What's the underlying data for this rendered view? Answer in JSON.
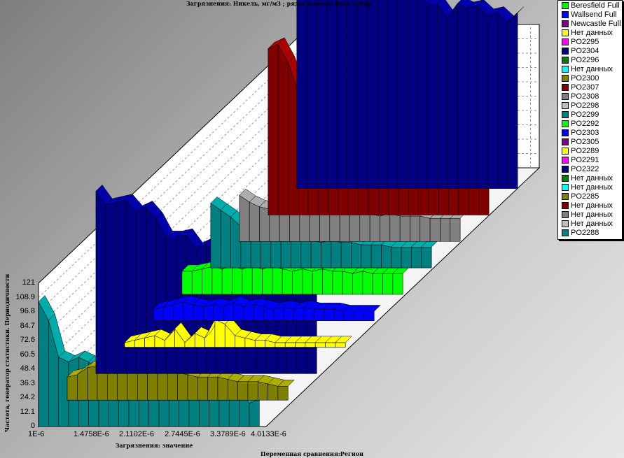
{
  "chart_data": {
    "type": "area",
    "title": "Загрязнения: Никель,  мг/м3 ; ряды данных: Весь набор",
    "xlabel": "Загрязнения:  значение",
    "ylabel": "Частота, генератор статистики.  Периодичности",
    "zlabel": "Переменная сравнения:Регион",
    "y_ticks": [
      "0",
      "12.1",
      "24.2",
      "36.3",
      "48.4",
      "60.5",
      "72.6",
      "84.7",
      "96.8",
      "108.9",
      "121"
    ],
    "ylim": [
      0,
      121
    ],
    "x_ticks": [
      "1E-6",
      "1.4758E-6",
      "2.1102E-6",
      "2.7445E-6",
      "3.3789E-6",
      "4.0133E-6"
    ],
    "legend": [
      {
        "name": "Beresfield Full",
        "color": "#00ff00"
      },
      {
        "name": "Wallsend Full",
        "color": "#0000ff"
      },
      {
        "name": "Newcastle Full",
        "color": "#800080"
      },
      {
        "name": "Нет данных",
        "color": "#ffff00"
      },
      {
        "name": "PO2295",
        "color": "#ff00ff"
      },
      {
        "name": "PO2304",
        "color": "#000080"
      },
      {
        "name": "PO2296",
        "color": "#008000"
      },
      {
        "name": "Нет данных",
        "color": "#00ffff"
      },
      {
        "name": "PO2300",
        "color": "#808000"
      },
      {
        "name": "PO2307",
        "color": "#800000"
      },
      {
        "name": "PO2308",
        "color": "#808080"
      },
      {
        "name": "PO2298",
        "color": "#c0c0c0"
      },
      {
        "name": "PO2299",
        "color": "#008080"
      },
      {
        "name": "PO2292",
        "color": "#00ff00"
      },
      {
        "name": "PO2303",
        "color": "#0000ff"
      },
      {
        "name": "PO2305",
        "color": "#800080"
      },
      {
        "name": "PO2289",
        "color": "#ffff00"
      },
      {
        "name": "PO2291",
        "color": "#ff00ff"
      },
      {
        "name": "PO2322",
        "color": "#000080"
      },
      {
        "name": "Нет данных",
        "color": "#008000"
      },
      {
        "name": "Нет данных",
        "color": "#00ffff"
      },
      {
        "name": "PO2285",
        "color": "#808000"
      },
      {
        "name": "Нет данных",
        "color": "#800000"
      },
      {
        "name": "Нет данных",
        "color": "#808080"
      },
      {
        "name": "Нет данных",
        "color": "#c0c0c0"
      },
      {
        "name": "PO2288",
        "color": "#008080"
      }
    ],
    "series": [
      {
        "name": "PO2304",
        "color": "#000080",
        "values": [
          108,
          110,
          106,
          108,
          105,
          109,
          103,
          97,
          92,
          92,
          89,
          84,
          86,
          80,
          80,
          74,
          80,
          78,
          79,
          75,
          76,
          72,
          76
        ]
      },
      {
        "name": "PO2307",
        "color": "#800000",
        "values": [
          72,
          74,
          66,
          54,
          55,
          56,
          52,
          54,
          49,
          47,
          47,
          44,
          46,
          43,
          44,
          42,
          42,
          41,
          41,
          40,
          38,
          36,
          34
        ]
      },
      {
        "name": "PO2308",
        "color": "#808080",
        "values": [
          20,
          17,
          15,
          14,
          13,
          14,
          14,
          13,
          13,
          12,
          12,
          13,
          12,
          12,
          11,
          12,
          11,
          11,
          11,
          10,
          10,
          10,
          10
        ]
      },
      {
        "name": "PO2299",
        "color": "#008080",
        "values": [
          28,
          25,
          22,
          18,
          16,
          15,
          14,
          13,
          13,
          12,
          12,
          11,
          12,
          11,
          11,
          10,
          10,
          10,
          9,
          9,
          9,
          9,
          9
        ]
      },
      {
        "name": "PO2292",
        "color": "#00ff00",
        "values": [
          10,
          10,
          11,
          12,
          11,
          12,
          11,
          12,
          11,
          12,
          11,
          10,
          11,
          10,
          11,
          10,
          10,
          9,
          10,
          9,
          9,
          9,
          9
        ]
      },
      {
        "name": "PO2303",
        "color": "#0000ff",
        "values": [
          5,
          6,
          7,
          8,
          7,
          6,
          7,
          6,
          8,
          6,
          7,
          6,
          5,
          6,
          5,
          6,
          5,
          5,
          5,
          4,
          4,
          4,
          4
        ]
      },
      {
        "name": "PO2289",
        "color": "#ffff00",
        "values": [
          2,
          3,
          4,
          5,
          3,
          8,
          2,
          6,
          4,
          12,
          10,
          5,
          4,
          3,
          3,
          2,
          2,
          2,
          2,
          2,
          2,
          2,
          2
        ]
      },
      {
        "name": "PO2322",
        "color": "#000080",
        "values": [
          79,
          73,
          74,
          75,
          70,
          72,
          67,
          59,
          59,
          60,
          54,
          56,
          50,
          46,
          43,
          43,
          38,
          38,
          38,
          38,
          38,
          35,
          36
        ]
      },
      {
        "name": "PO2285",
        "color": "#808000",
        "values": [
          10,
          11,
          14,
          15,
          16,
          13,
          15,
          12,
          14,
          13,
          12,
          12,
          11,
          10,
          10,
          10,
          9,
          8,
          8,
          8,
          7,
          6,
          6
        ]
      },
      {
        "name": "PO2288",
        "color": "#008080",
        "values": [
          54,
          46,
          30,
          28,
          30,
          28,
          24,
          22,
          26,
          20,
          24,
          22,
          24,
          26,
          22,
          30,
          24,
          30,
          26,
          18,
          18,
          10,
          12
        ]
      }
    ]
  }
}
